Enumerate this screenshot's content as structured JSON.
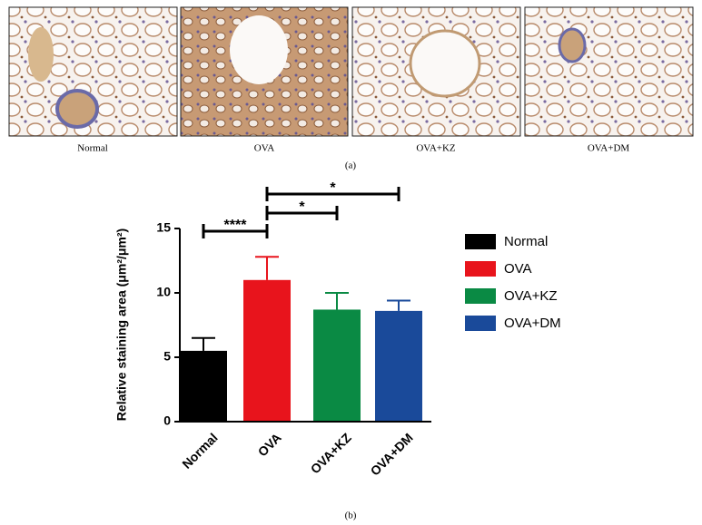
{
  "panels": [
    {
      "caption": "Normal"
    },
    {
      "caption": "OVA"
    },
    {
      "caption": "OVA+KZ"
    },
    {
      "caption": "OVA+DM"
    }
  ],
  "panel_labels": [
    "(a)",
    "(b)"
  ],
  "chart_data": {
    "type": "bar",
    "ylabel": "Relative staining area (μm²/μm²)",
    "categories": [
      "Normal",
      "OVA",
      "OVA+KZ",
      "OVA+DM"
    ],
    "values": [
      5.5,
      11.0,
      8.7,
      8.6
    ],
    "errors": [
      1.0,
      1.8,
      1.3,
      0.8
    ],
    "colors": [
      "#000000",
      "#e8141c",
      "#0a8a44",
      "#1a4a9a"
    ],
    "ylim": [
      0,
      15
    ],
    "yticks": [
      0,
      5,
      10,
      15
    ],
    "annotations": [
      "****",
      "*",
      "*"
    ],
    "legend": "right"
  }
}
